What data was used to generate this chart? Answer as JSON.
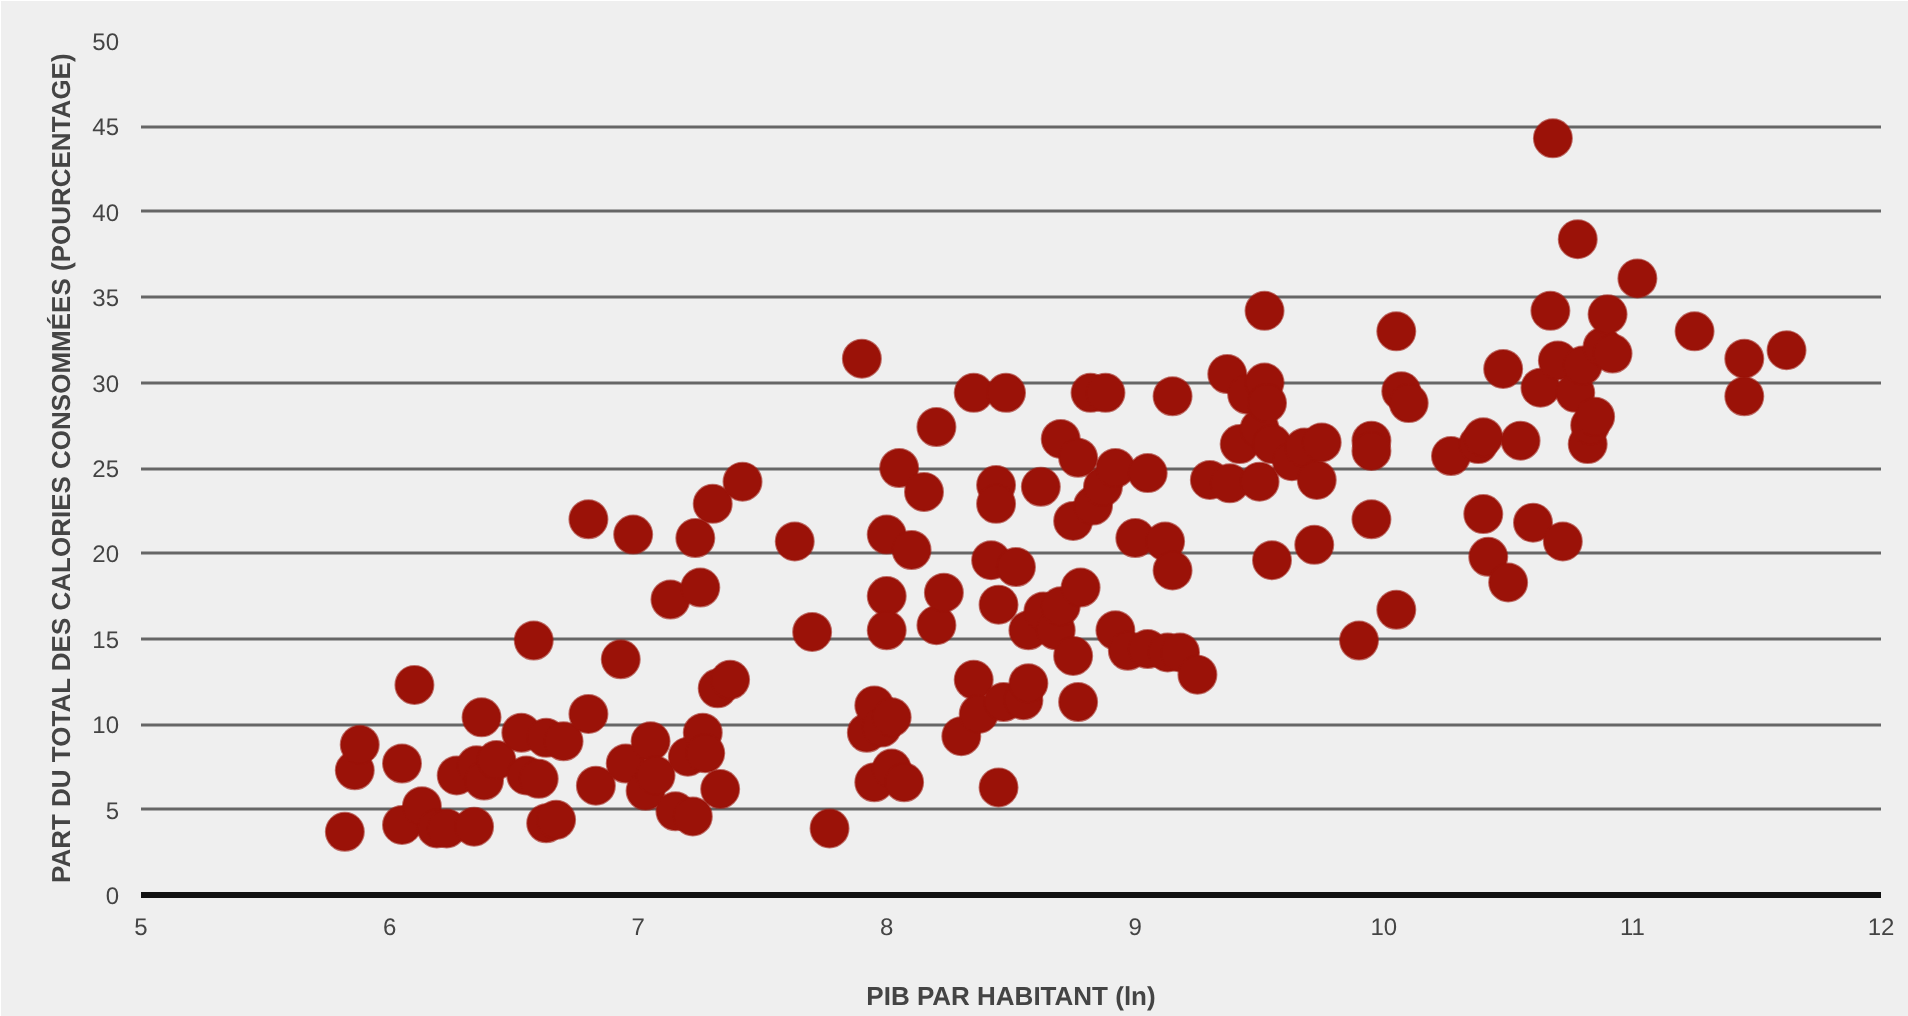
{
  "chart_data": {
    "type": "scatter",
    "xlabel": "PIB PAR HABITANT (ln)",
    "ylabel": "PART DU TOTAL DES CALORIES CONSOMMÉES (POURCENTAGE)",
    "xlim": [
      5,
      12
    ],
    "xticks": [
      5,
      6,
      7,
      8,
      9,
      10,
      11,
      12
    ],
    "ylim": [
      0,
      50
    ],
    "yticks": [
      0,
      5,
      10,
      15,
      20,
      25,
      30,
      35,
      40,
      45,
      50
    ],
    "grid": "y",
    "marker": "circle",
    "series": [
      {
        "color": "#9b1208",
        "x": [
          5.82,
          5.86,
          5.88,
          6.05,
          6.05,
          6.1,
          6.13,
          6.19,
          6.23,
          6.27,
          6.34,
          6.35,
          6.37,
          6.38,
          6.43,
          6.53,
          6.55,
          6.58,
          6.6,
          6.63,
          6.63,
          6.67,
          6.7,
          6.8,
          6.8,
          6.83,
          6.93,
          6.95,
          6.98,
          7.03,
          7.05,
          7.07,
          7.13,
          7.15,
          7.2,
          7.22,
          7.23,
          7.25,
          7.26,
          7.27,
          7.3,
          7.32,
          7.33,
          7.37,
          7.42,
          7.63,
          7.7,
          7.77,
          7.9,
          7.92,
          7.95,
          7.95,
          7.98,
          8.0,
          8.0,
          8.0,
          8.02,
          8.02,
          8.05,
          8.07,
          8.1,
          8.15,
          8.2,
          8.2,
          8.23,
          8.3,
          8.35,
          8.35,
          8.37,
          8.42,
          8.44,
          8.44,
          8.45,
          8.45,
          8.47,
          8.48,
          8.52,
          8.55,
          8.57,
          8.57,
          8.62,
          8.63,
          8.68,
          8.7,
          8.7,
          8.75,
          8.75,
          8.77,
          8.77,
          8.78,
          8.82,
          8.83,
          8.87,
          8.88,
          8.92,
          8.92,
          8.97,
          9.0,
          9.05,
          9.05,
          9.12,
          9.13,
          9.15,
          9.15,
          9.18,
          9.25,
          9.3,
          9.37,
          9.38,
          9.42,
          9.45,
          9.5,
          9.5,
          9.52,
          9.52,
          9.53,
          9.55,
          9.55,
          9.63,
          9.68,
          9.72,
          9.73,
          9.75,
          9.9,
          9.95,
          9.95,
          9.95,
          10.05,
          10.05,
          10.07,
          10.1,
          10.27,
          10.38,
          10.4,
          10.4,
          10.42,
          10.48,
          10.5,
          10.55,
          10.6,
          10.63,
          10.67,
          10.68,
          10.7,
          10.72,
          10.77,
          10.78,
          10.8,
          10.82,
          10.83,
          10.85,
          10.88,
          10.9,
          10.92,
          11.02,
          11.25,
          11.45,
          11.45,
          11.62
        ],
        "values": [
          3.7,
          7.3,
          8.8,
          7.7,
          4.1,
          12.3,
          5.2,
          3.9,
          3.9,
          7,
          4,
          7.6,
          10.4,
          6.7,
          7.9,
          9.5,
          7,
          14.9,
          6.8,
          4.2,
          9.2,
          4.4,
          9,
          10.6,
          22,
          6.4,
          13.8,
          7.7,
          21.1,
          6.1,
          9,
          7,
          17.3,
          4.9,
          8.1,
          4.6,
          20.9,
          18,
          9.5,
          8.3,
          22.9,
          12.1,
          6.2,
          12.6,
          24.2,
          20.7,
          15.4,
          3.9,
          31.4,
          9.5,
          11.1,
          6.6,
          9.8,
          21.1,
          17.5,
          15.5,
          10.4,
          7.4,
          25,
          6.6,
          20.2,
          23.6,
          27.4,
          15.8,
          17.7,
          9.3,
          12.6,
          29.4,
          10.6,
          19.6,
          24,
          22.9,
          17,
          6.3,
          11.3,
          29.4,
          19.2,
          11.4,
          12.4,
          15.5,
          23.9,
          16.6,
          15.5,
          26.7,
          16.9,
          14,
          21.9,
          11.3,
          25.6,
          18,
          29.4,
          22.8,
          23.9,
          29.4,
          25,
          15.5,
          14.3,
          20.9,
          24.7,
          14.4,
          20.7,
          14.2,
          19,
          29.2,
          14.2,
          12.9,
          24.3,
          30.5,
          24.1,
          26.4,
          29.3,
          27.3,
          24.2,
          34.2,
          30,
          28.8,
          26.4,
          19.6,
          25.4,
          26.2,
          20.5,
          24.3,
          26.5,
          14.9,
          26.6,
          26,
          22,
          33,
          16.7,
          29.5,
          28.8,
          25.7,
          26.4,
          26.8,
          22.3,
          19.8,
          30.8,
          18.3,
          26.6,
          21.8,
          29.7,
          34.2,
          44.3,
          31.3,
          20.7,
          29.4,
          38.4,
          31,
          26.4,
          27.5,
          28,
          32.1,
          34,
          31.7,
          36.1,
          33,
          31.4,
          29.2,
          31.9
        ]
      }
    ]
  }
}
